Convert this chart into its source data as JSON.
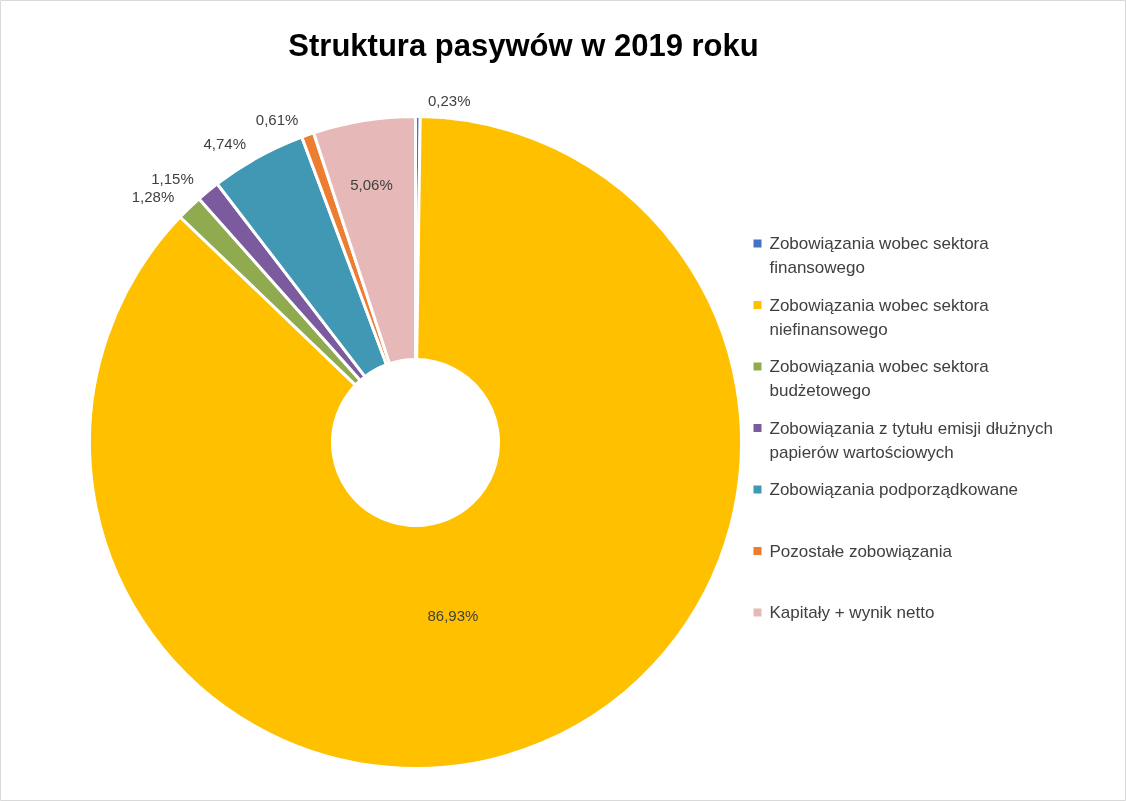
{
  "chart_data": {
    "type": "donut",
    "title": "Struktura pasywów w 2019 roku",
    "categories": [
      "Zobowiązania wobec sektora finansowego",
      "Zobowiązania wobec sektora niefinansowego",
      "Zobowiązania wobec sektora budżetowego",
      "Zobowiązania z tytułu emisji dłużnych papierów wartościowych",
      "Zobowiązania podporządkowane",
      "Pozostałe zobowiązania",
      "Kapitały + wynik netto"
    ],
    "values": [
      0.23,
      86.93,
      1.28,
      1.15,
      4.74,
      0.61,
      5.06
    ],
    "value_labels": [
      "0,23%",
      "86,93%",
      "1,28%",
      "1,15%",
      "4,74%",
      "0,61%",
      "5,06%"
    ],
    "colors": [
      "#4472c4",
      "#ffc000",
      "#8faa4f",
      "#7b5a9e",
      "#4198b5",
      "#ed7d31",
      "#e6b9b8"
    ],
    "legend": "right"
  }
}
